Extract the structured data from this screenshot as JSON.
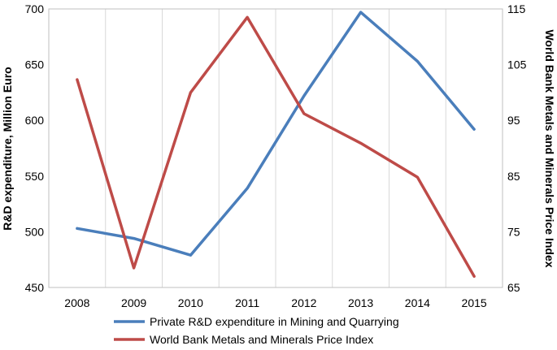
{
  "chart_data": {
    "type": "line",
    "title": "",
    "x": [
      "2008",
      "2009",
      "2010",
      "2011",
      "2012",
      "2013",
      "2014",
      "2015"
    ],
    "xlabel": "",
    "ylabel_left": "R&D expenditure, Million Euro",
    "ylabel_right": "World Bank Metals and Minerals Price Index",
    "ylim_left": [
      450,
      700
    ],
    "ylim_right": [
      65,
      115
    ],
    "yticks_left": [
      "450",
      "500",
      "550",
      "600",
      "650",
      "700"
    ],
    "yticks_right": [
      "65",
      "75",
      "85",
      "95",
      "105",
      "115"
    ],
    "grid": "vertical",
    "legend_position": "bottom",
    "series": [
      {
        "name": "Private R&D expenditure in Mining and Quarrying",
        "axis": "left",
        "color": "#4a7ebb",
        "values": [
          503,
          494,
          479,
          539,
          622,
          697,
          653,
          592
        ]
      },
      {
        "name": "World Bank Metals and Minerals Price Index",
        "axis": "right",
        "color": "#be4b48",
        "values": [
          102.3,
          68.5,
          100.0,
          113.5,
          96.2,
          90.9,
          84.8,
          67.0
        ]
      }
    ]
  }
}
